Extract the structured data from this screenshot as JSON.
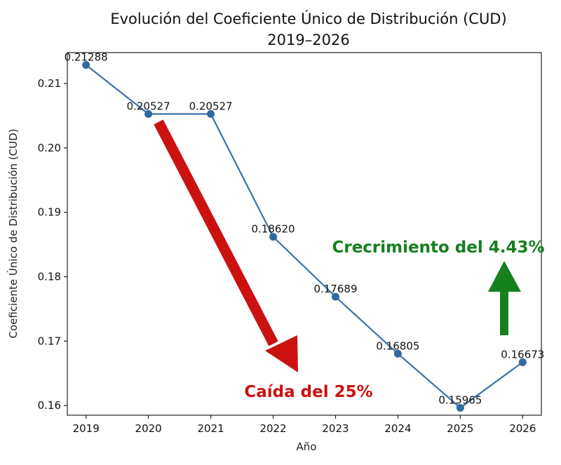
{
  "chart_data": {
    "type": "line",
    "title_line1": "Evolución del Coeficiente Único de Distribución (CUD)",
    "title_line2": "2019–2026",
    "xlabel": "Año",
    "ylabel": "Coeficiente Único de Distribución (CUD)",
    "x": [
      2019,
      2020,
      2021,
      2022,
      2023,
      2024,
      2025,
      2026
    ],
    "x_tick_labels": [
      "2019",
      "2020",
      "2021",
      "2022",
      "2023",
      "2024",
      "2025",
      "2026"
    ],
    "values": [
      0.21288,
      0.20527,
      0.20527,
      0.1862,
      0.17689,
      0.16805,
      0.15965,
      0.16673
    ],
    "value_labels": [
      "0.21288",
      "0.20527",
      "0.20527",
      "0.18620",
      "0.17689",
      "0.16805",
      "0.15965",
      "0.16673"
    ],
    "y_ticks": [
      0.16,
      0.17,
      0.18,
      0.19,
      0.2,
      0.21
    ],
    "y_tick_labels": [
      "0.16",
      "0.17",
      "0.18",
      "0.19",
      "0.20",
      "0.21"
    ],
    "ylim": [
      0.1585,
      0.2148
    ],
    "xlim": [
      2018.7,
      2026.3
    ],
    "line_color": "#3a72a6",
    "marker_color": "#2f6aa0",
    "annotations": {
      "decrease_label": "Caída del 25%",
      "decrease_color": "#cc1111",
      "increase_label": "Crecrimiento del 4.43%",
      "increase_color": "#15801d"
    }
  }
}
